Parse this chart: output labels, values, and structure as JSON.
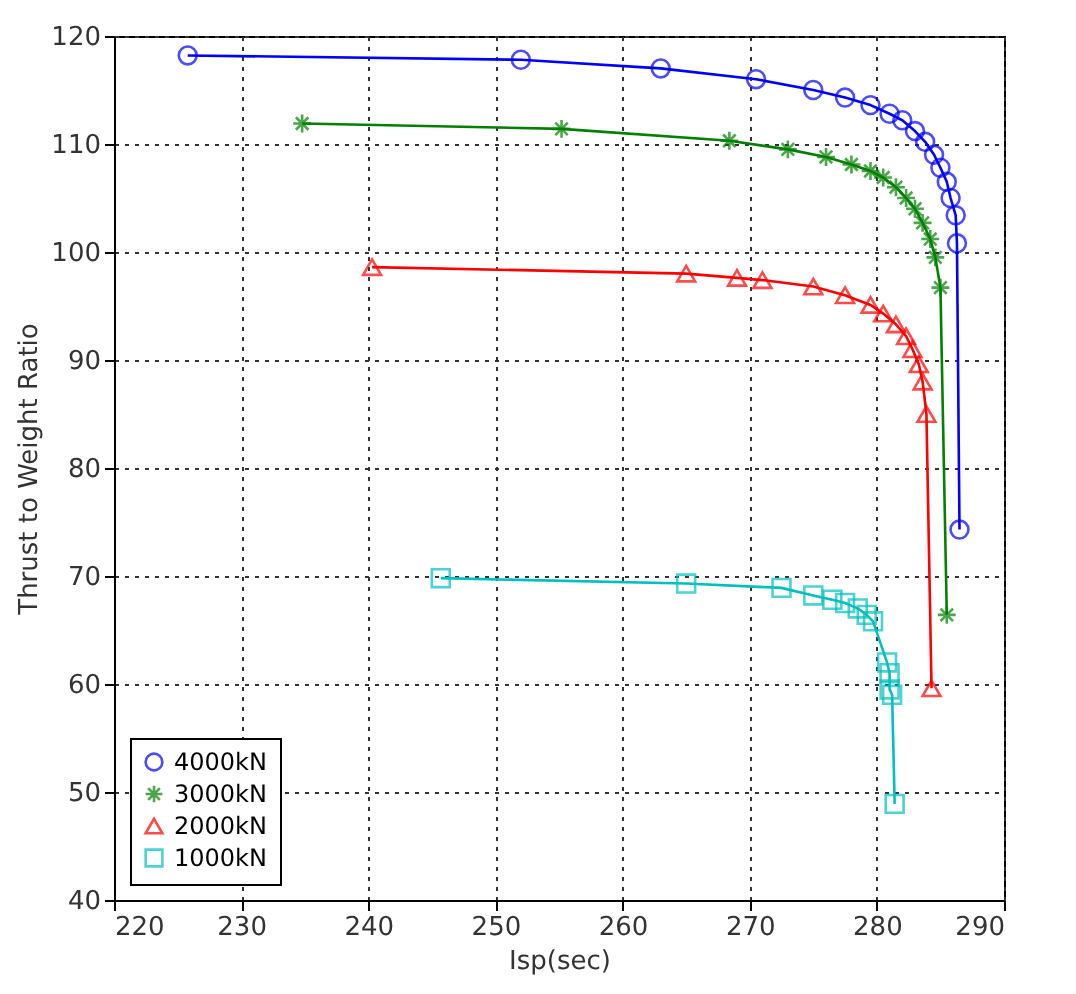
{
  "chart_data": {
    "type": "line",
    "xlabel": "Isp(sec)",
    "ylabel": "Thrust to Weight Ratio",
    "xlim": [
      220,
      290
    ],
    "xticks": [
      220,
      230,
      240,
      250,
      260,
      270,
      280,
      290
    ],
    "ylim": [
      40,
      120
    ],
    "yticks": [
      40,
      50,
      60,
      70,
      80,
      90,
      100,
      110,
      120
    ],
    "grid": true,
    "legend": "bottom left",
    "line_style": "solid",
    "series": [
      {
        "name": "4000kN",
        "color": "#0000ff",
        "marker": "circle",
        "x": [
          225.8,
          252,
          263,
          270.5,
          275,
          277.5,
          279.5,
          281,
          282,
          283,
          283.8,
          284.5,
          285,
          285.5,
          285.8,
          286.2,
          286.3,
          286.5
        ],
        "values": [
          118.2,
          117.8,
          117,
          116,
          115,
          114.3,
          113.6,
          112.8,
          112.2,
          111.2,
          110.2,
          109,
          107.8,
          106.5,
          105,
          103.4,
          100.8,
          74.3
        ]
      },
      {
        "name": "3000kN",
        "color": "#008000",
        "marker": "cross",
        "x": [
          234.8,
          255.2,
          268.4,
          273,
          276,
          278,
          279.5,
          280.5,
          281.5,
          282.3,
          283,
          283.6,
          284.2,
          284.6,
          285,
          285.5
        ],
        "values": [
          111.9,
          111.4,
          110.3,
          109.5,
          108.8,
          108.1,
          107.5,
          106.9,
          106,
          105,
          104,
          102.7,
          101.2,
          99.5,
          96.7,
          66.4
        ]
      },
      {
        "name": "2000kN",
        "color": "#ff0000",
        "marker": "triangle",
        "x": [
          240.3,
          265,
          269,
          271,
          275,
          277.5,
          279.5,
          280.5,
          281.5,
          282.3,
          282.8,
          283.3,
          283.6,
          283.9,
          284.3
        ],
        "values": [
          98.6,
          98,
          97.6,
          97.4,
          96.8,
          96,
          95.1,
          94.3,
          93.3,
          92.2,
          91,
          89.6,
          88,
          85,
          59.6
        ]
      },
      {
        "name": "1000kN",
        "color": "#00bfbf",
        "marker": "square",
        "x": [
          245.7,
          265,
          272.5,
          275,
          276.5,
          277.5,
          278.5,
          279.2,
          279.7,
          280.8,
          281,
          281,
          281.2,
          281.4
        ],
        "values": [
          69.8,
          69.3,
          68.9,
          68.2,
          67.8,
          67.5,
          67,
          66.4,
          65.8,
          62,
          61,
          59.5,
          59,
          48.9
        ]
      }
    ]
  }
}
